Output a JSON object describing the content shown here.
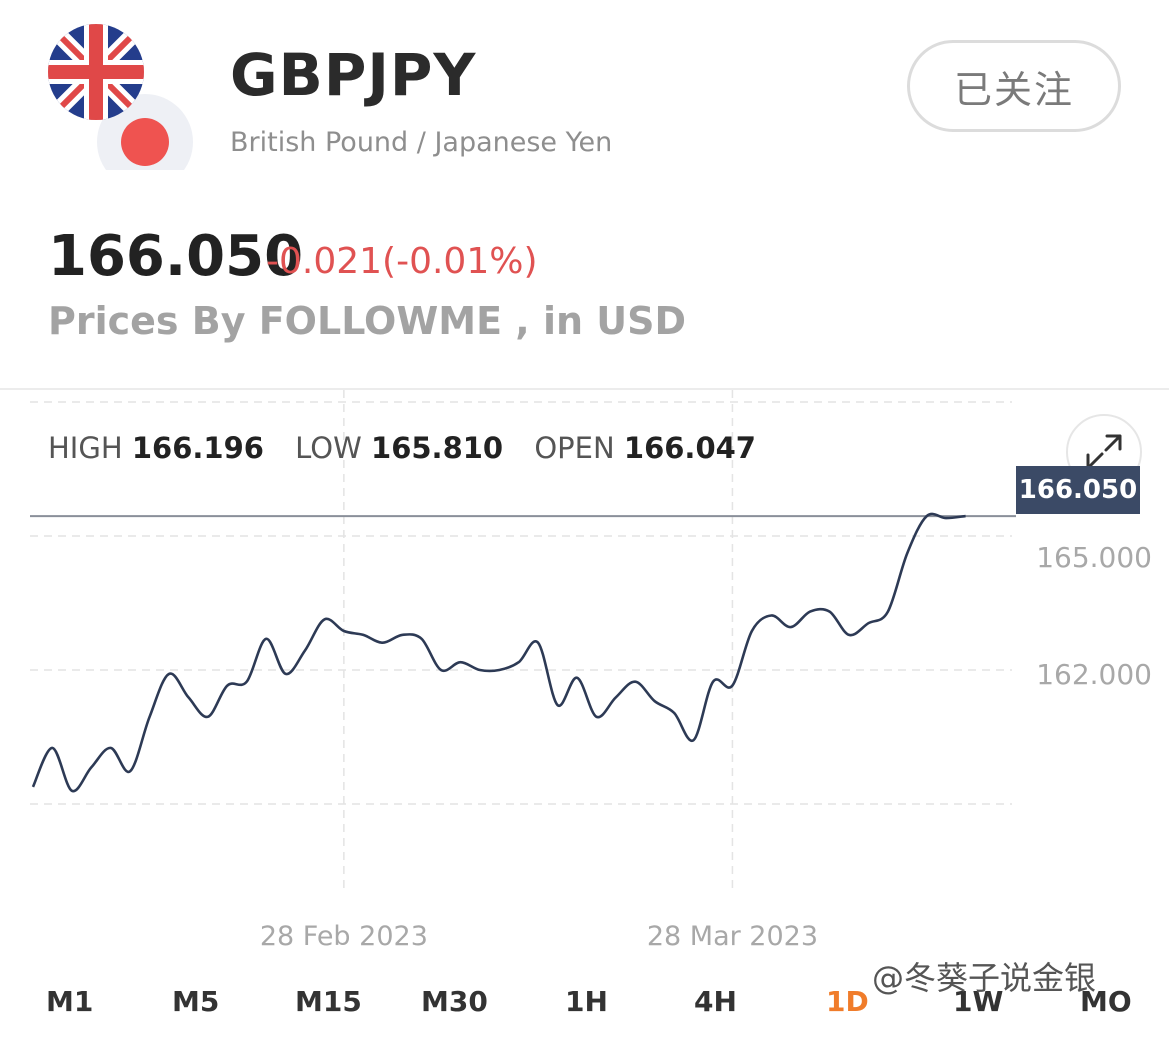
{
  "header": {
    "symbol": "GBPJPY",
    "pair_name": "British Pound / Japanese Yen",
    "follow_label": "已关注"
  },
  "quote": {
    "price": "166.050",
    "change": "-0.021(-0.01%)",
    "source": "Prices By FOLLOWME , in USD"
  },
  "stats": {
    "high_label": "HIGH",
    "high_value": "166.196",
    "low_label": "LOW",
    "low_value": "165.810",
    "open_label": "OPEN",
    "open_value": "166.047"
  },
  "current_price_tag": "166.050",
  "timeframes": [
    {
      "label": "M1",
      "active": false
    },
    {
      "label": "M5",
      "active": false
    },
    {
      "label": "M15",
      "active": false
    },
    {
      "label": "M30",
      "active": false
    },
    {
      "label": "1H",
      "active": false
    },
    {
      "label": "4H",
      "active": false
    },
    {
      "label": "1D",
      "active": true
    },
    {
      "label": "1W",
      "active": false
    },
    {
      "label": "MO",
      "active": false
    }
  ],
  "watermark": "@冬葵子说金银",
  "colors": {
    "line": "#2d3a55",
    "negative": "#e05252",
    "active_timeframe": "#f07c2a",
    "price_tag_bg": "#3b4a66"
  },
  "icons": {
    "flag": "uk-japan-flag-icon",
    "expand": "expand-arrows-icon"
  },
  "chart_data": {
    "type": "line",
    "ylim": [
      157.3,
      166.9
    ],
    "xlim": [
      0,
      49
    ],
    "y_ticks": [
      {
        "value": 165.0,
        "label": "165.000"
      },
      {
        "value": 162.0,
        "label": "162.000"
      }
    ],
    "x_ticks": [
      {
        "value": 16,
        "label": "28 Feb 2023"
      },
      {
        "value": 36,
        "label": "28 Mar 2023"
      }
    ],
    "current_line": 166.05,
    "series": [
      {
        "x": [
          0,
          1,
          2,
          3,
          4,
          5,
          6,
          7,
          8,
          9,
          10,
          11,
          12,
          13,
          14,
          15,
          16,
          17,
          18,
          19,
          20,
          21,
          22,
          23,
          24,
          25,
          26,
          27,
          28,
          29,
          30,
          31,
          32,
          33,
          34,
          35,
          36,
          37,
          38,
          39,
          40,
          41,
          42,
          43,
          44,
          45,
          46,
          47,
          48
        ],
        "values": [
          159.1,
          160.1,
          159.0,
          159.6,
          160.1,
          159.5,
          160.9,
          162.0,
          161.4,
          160.9,
          161.7,
          161.8,
          162.9,
          162.0,
          162.6,
          163.4,
          163.1,
          163.0,
          162.8,
          163.0,
          162.9,
          162.1,
          162.3,
          162.1,
          162.1,
          162.3,
          162.8,
          161.2,
          161.9,
          160.9,
          161.4,
          161.8,
          161.3,
          161.0,
          160.3,
          161.8,
          161.7,
          163.1,
          163.5,
          163.2,
          163.6,
          163.6,
          163.0,
          163.3,
          163.6,
          165.1,
          166.05,
          166.0,
          166.05
        ]
      }
    ]
  }
}
